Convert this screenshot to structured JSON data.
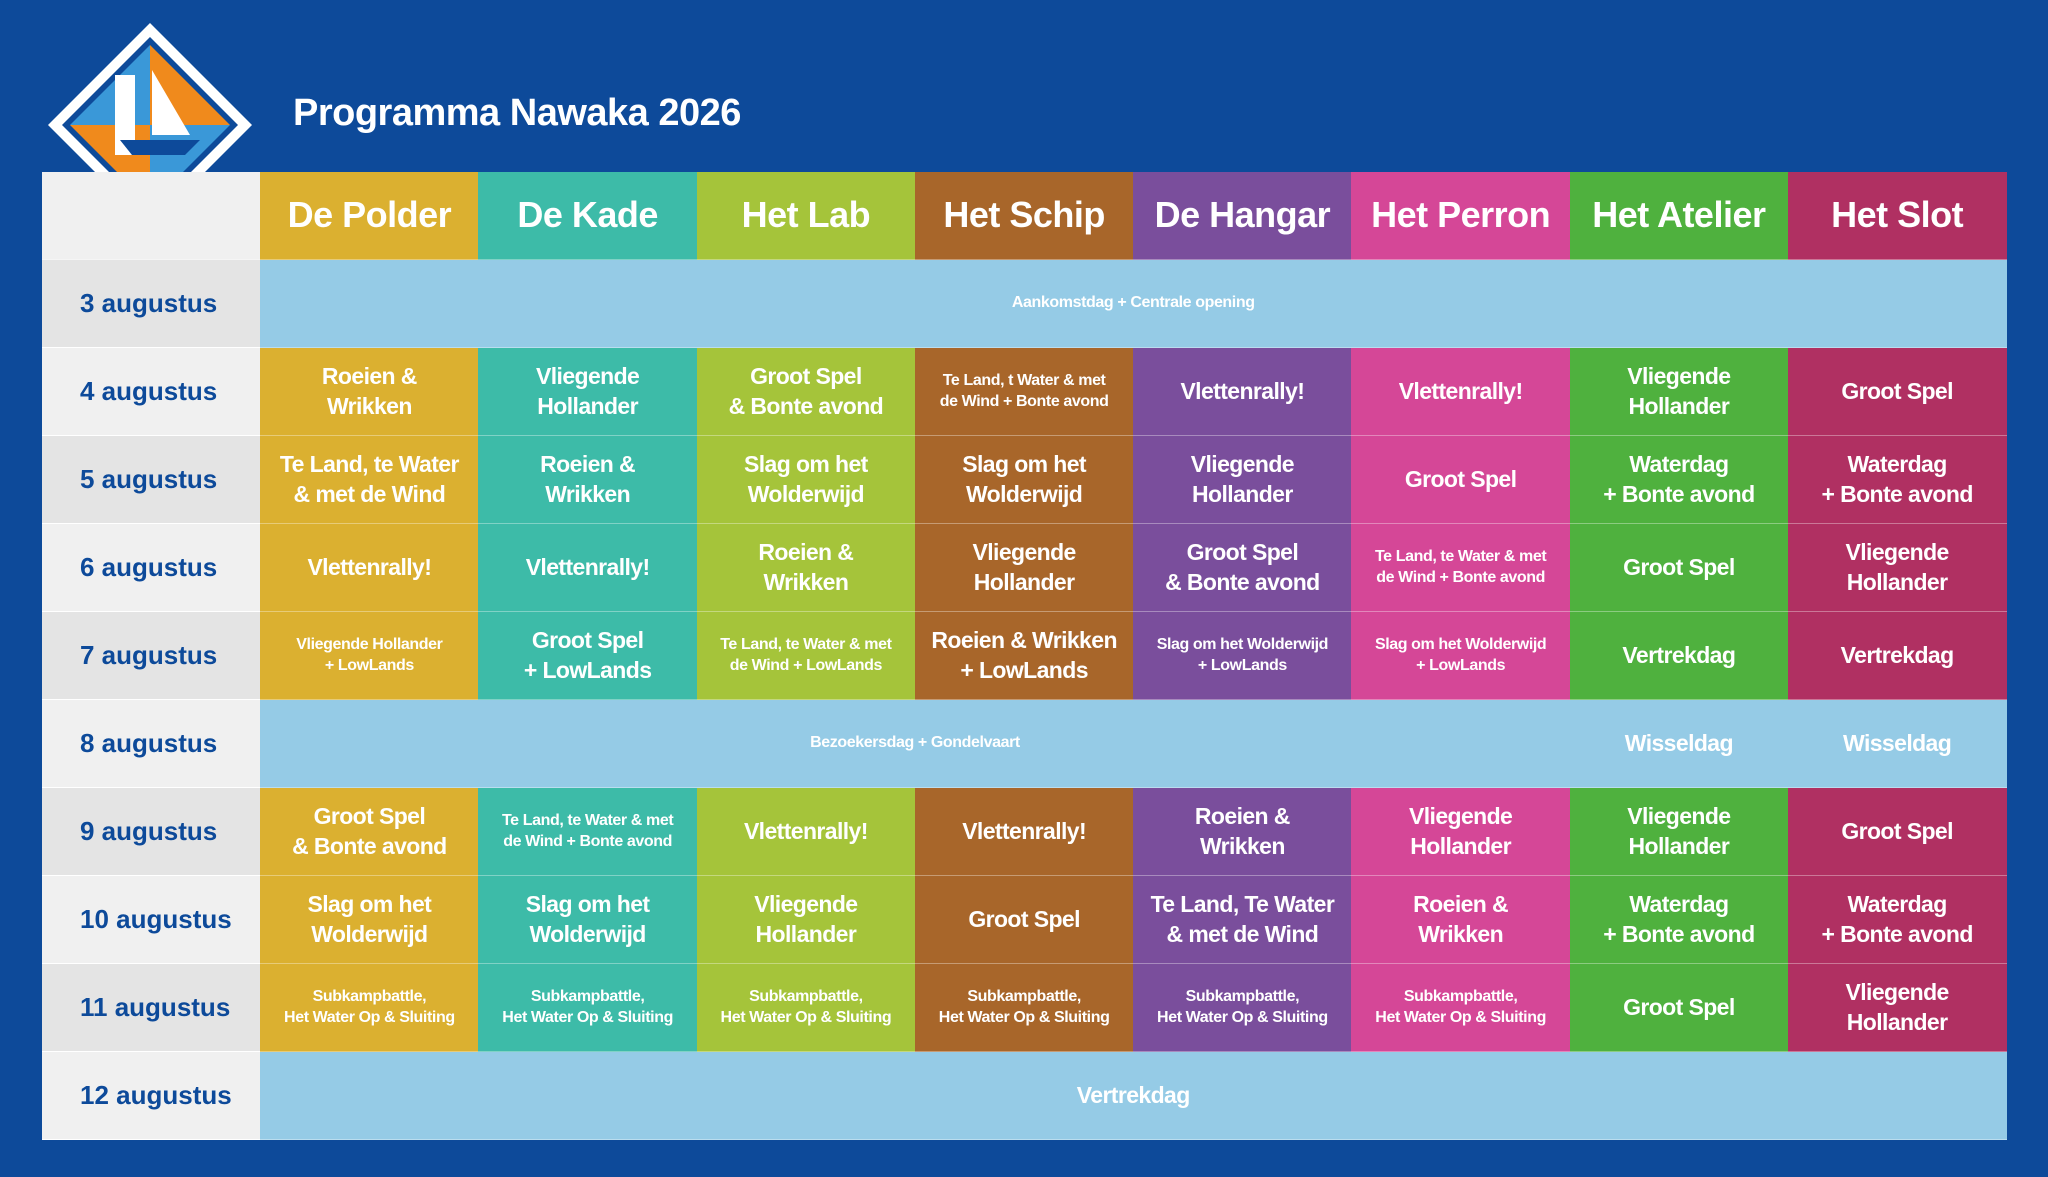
{
  "header": {
    "title": "Programma Nawaka 2026"
  },
  "columns": [
    "De Polder",
    "De Kade",
    "Het Lab",
    "Het Schip",
    "De Hangar",
    "Het Perron",
    "Het Atelier",
    "Het Slot"
  ],
  "rows": [
    {
      "date": "3 augustus",
      "cells": [
        "Aankomstdag + Centrale opening"
      ]
    },
    {
      "date": "4 augustus",
      "cells": [
        "Roeien &\nWrikken",
        "Vliegende\nHollander",
        "Groot Spel\n& Bonte avond",
        "Te Land, t Water & met\nde Wind + Bonte avond",
        "Vlettenrally!",
        "Vlettenrally!",
        "Vliegende\nHollander",
        "Groot Spel"
      ]
    },
    {
      "date": "5 augustus",
      "cells": [
        "Te Land, te Water\n& met de Wind",
        "Roeien &\nWrikken",
        "Slag om het\nWolderwijd",
        "Slag om het\nWolderwijd",
        "Vliegende\nHollander",
        "Groot Spel",
        "Waterdag\n+ Bonte avond",
        "Waterdag\n+ Bonte avond"
      ]
    },
    {
      "date": "6 augustus",
      "cells": [
        "Vlettenrally!",
        "Vlettenrally!",
        "Roeien &\nWrikken",
        "Vliegende\nHollander",
        "Groot Spel\n& Bonte avond",
        "Te Land, te Water & met\nde Wind + Bonte avond",
        "Groot Spel",
        "Vliegende\nHollander"
      ]
    },
    {
      "date": "7 augustus",
      "cells": [
        "Vliegende Hollander\n+ LowLands",
        "Groot Spel\n+ LowLands",
        "Te Land, te Water & met\nde Wind + LowLands",
        "Roeien & Wrikken\n+ LowLands",
        "Slag om het Wolderwijd\n+ LowLands",
        "Slag om het Wolderwijd\n+ LowLands",
        "Vertrekdag",
        "Vertrekdag"
      ]
    },
    {
      "date": "8 augustus",
      "cells": [
        "Bezoekersdag + Gondelvaart",
        "Wisseldag",
        "Wisseldag"
      ]
    },
    {
      "date": "9 augustus",
      "cells": [
        "Groot Spel\n& Bonte avond",
        "Te Land, te Water & met\nde Wind + Bonte avond",
        "Vlettenrally!",
        "Vlettenrally!",
        "Roeien &\nWrikken",
        "Vliegende\nHollander",
        "Vliegende\nHollander",
        "Groot Spel"
      ]
    },
    {
      "date": "10 augustus",
      "cells": [
        "Slag om het\nWolderwijd",
        "Slag om het\nWolderwijd",
        "Vliegende\nHollander",
        "Groot Spel",
        "Te Land, Te Water\n& met de Wind",
        "Roeien &\nWrikken",
        "Waterdag\n+ Bonte avond",
        "Waterdag\n+ Bonte avond"
      ]
    },
    {
      "date": "11 augustus",
      "cells": [
        "Subkampbattle,\nHet Water Op & Sluiting",
        "Subkampbattle,\nHet Water Op & Sluiting",
        "Subkampbattle,\nHet Water Op & Sluiting",
        "Subkampbattle,\nHet Water Op & Sluiting",
        "Subkampbattle,\nHet Water Op & Sluiting",
        "Subkampbattle,\nHet Water Op & Sluiting",
        "Groot Spel",
        "Vliegende\nHollander"
      ]
    },
    {
      "date": "12 augustus",
      "cells": [
        "Vertrekdag"
      ]
    }
  ]
}
